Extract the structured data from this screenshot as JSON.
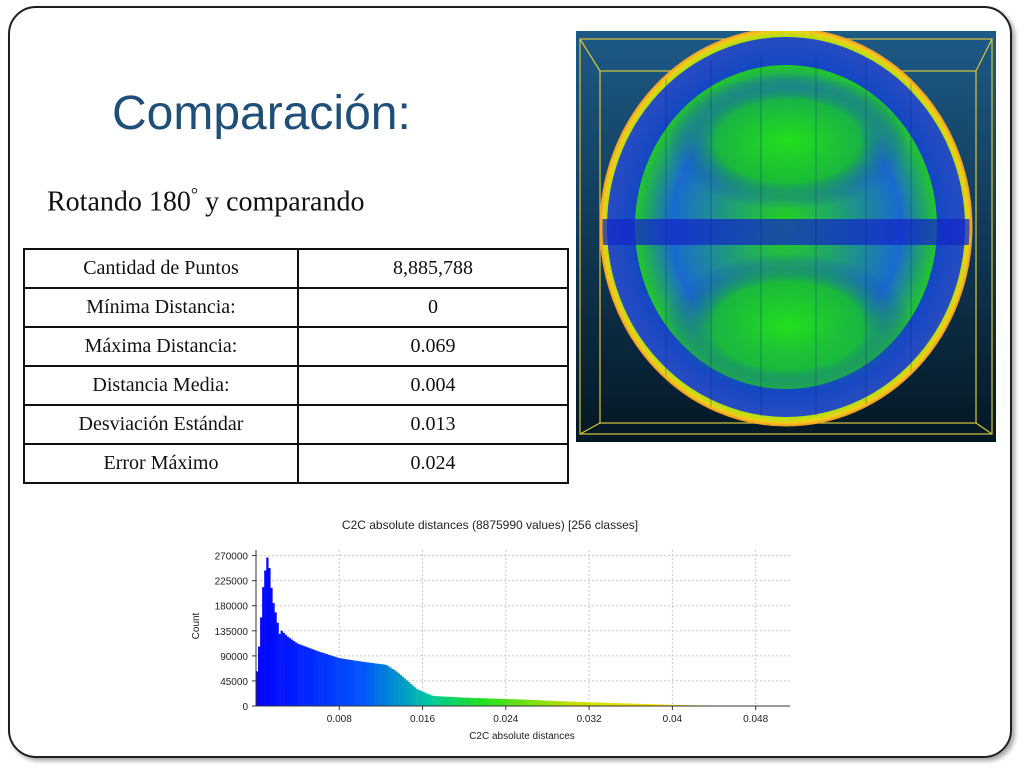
{
  "slide": {
    "title": "Comparación:",
    "subtitle_text": "Rotando 180",
    "subtitle_degree": "°",
    "subtitle_rest": " y comparando"
  },
  "stats_table": {
    "rows": [
      {
        "label": "Cantidad de Puntos",
        "value": "8,885,788"
      },
      {
        "label": "Mínima Distancia:",
        "value": "0"
      },
      {
        "label": "Máxima Distancia:",
        "value": "0.069"
      },
      {
        "label": "Distancia Media:",
        "value": "0.004"
      },
      {
        "label": "Desviación Estándar",
        "value": "0.013"
      },
      {
        "label": "Error Máximo",
        "value": "0.024"
      }
    ]
  },
  "colors": {
    "title": "#1f4e79",
    "render_bg_top": "#1d5a86",
    "render_bg_bottom": "#041724",
    "bounding_box": "#d8c63a",
    "disc_blue": "#1020e0",
    "disc_green": "#22d41e",
    "disc_rim": "#ffd020"
  },
  "chart_data": {
    "type": "bar",
    "title": "C2C absolute distances (8875990 values)  [256 classes]",
    "xlabel": "C2C absolute distances",
    "ylabel": "Count",
    "xlim": [
      0,
      0.0513
    ],
    "ylim": [
      0,
      280000
    ],
    "x_ticks": [
      "0.008",
      "0.016",
      "0.024",
      "0.032",
      "0.04",
      "0.048"
    ],
    "x_tick_values": [
      0.008,
      0.016,
      0.024,
      0.032,
      0.04,
      0.048
    ],
    "y_ticks": [
      "0",
      "45000",
      "90000",
      "135000",
      "180000",
      "225000",
      "270000"
    ],
    "y_tick_values": [
      0,
      45000,
      90000,
      135000,
      180000,
      225000,
      270000
    ],
    "grid": true,
    "profile": [
      [
        0.0,
        40000
      ],
      [
        0.0004,
        130000
      ],
      [
        0.0008,
        255000
      ],
      [
        0.0011,
        270000
      ],
      [
        0.0014,
        235000
      ],
      [
        0.0018,
        175000
      ],
      [
        0.0022,
        140000
      ],
      [
        0.003,
        125000
      ],
      [
        0.004,
        112000
      ],
      [
        0.006,
        98000
      ],
      [
        0.008,
        86000
      ],
      [
        0.01,
        80000
      ],
      [
        0.0125,
        74000
      ],
      [
        0.0135,
        62000
      ],
      [
        0.0155,
        30000
      ],
      [
        0.017,
        18000
      ],
      [
        0.02,
        15000
      ],
      [
        0.025,
        12000
      ],
      [
        0.03,
        8000
      ],
      [
        0.035,
        5000
      ],
      [
        0.04,
        2000
      ],
      [
        0.045,
        400
      ],
      [
        0.05,
        0
      ]
    ]
  }
}
